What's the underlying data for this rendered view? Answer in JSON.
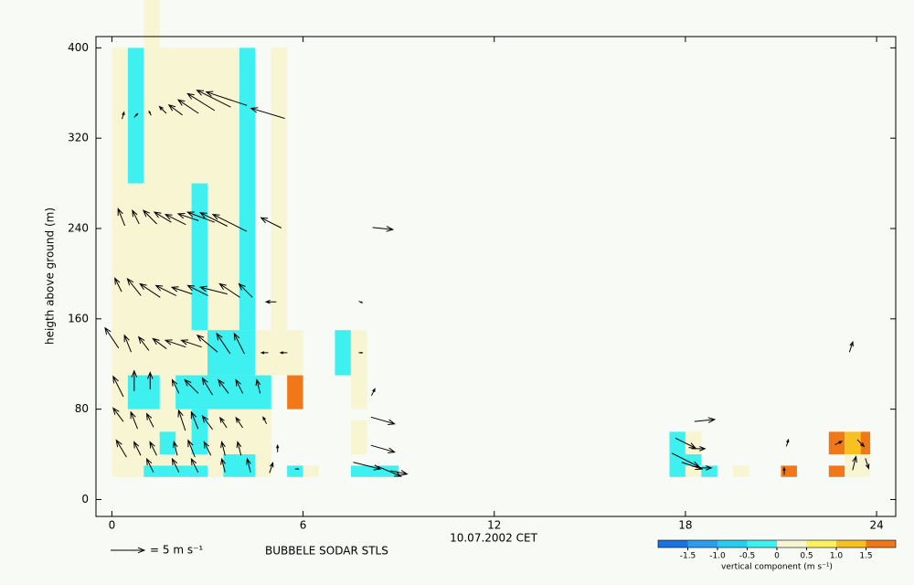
{
  "chart_data": {
    "type": "heatmap",
    "xlabel": "10.07.2002 CET",
    "ylabel": "heigth above ground (m)",
    "xlim": [
      -0.5,
      24.6
    ],
    "ylim": [
      -15,
      410
    ],
    "xticks": [
      0,
      6,
      12,
      18,
      24
    ],
    "yticks": [
      0,
      80,
      160,
      240,
      320,
      400
    ],
    "station": "BUBBELE SODAR STLS",
    "vector_key": {
      "value": 5,
      "label": "= 5 m s⁻¹"
    },
    "colorscale": {
      "label": "vertical component (m s⁻¹)",
      "bounds": [
        -2,
        -1.5,
        -1,
        -0.5,
        0,
        0.5,
        1,
        1.5,
        2
      ],
      "colors": [
        "#1a73e0",
        "#2a9df0",
        "#27ccf0",
        "#3ef0f0",
        "#f7f5d2",
        "#fff060",
        "#f8c020",
        "#f07818"
      ],
      "ticks": [
        -1.5,
        {
          "value": -1,
          "label": "-1.0"
        },
        -0.5,
        0,
        0.5,
        {
          "value": 1,
          "label": "1.0"
        },
        1.5
      ]
    },
    "cells": [
      [
        0,
        4.5,
        150,
        400,
        0.2
      ],
      [
        5.0,
        5.5,
        150,
        400,
        0.2
      ],
      [
        1.0,
        1.5,
        400,
        443,
        0.2
      ],
      [
        0.5,
        1.0,
        280,
        400,
        -0.3
      ],
      [
        2.5,
        3.0,
        150,
        280,
        -0.3
      ],
      [
        4.0,
        4.5,
        60,
        400,
        -0.3
      ],
      [
        0,
        6,
        110,
        150,
        0.2
      ],
      [
        0,
        5,
        20,
        110,
        0.2
      ],
      [
        3.0,
        4.5,
        110,
        150,
        -0.3
      ],
      [
        0.5,
        1.5,
        80,
        110,
        -0.3
      ],
      [
        2.0,
        5.0,
        80,
        110,
        -0.3
      ],
      [
        5.5,
        6.0,
        80,
        110,
        1.7
      ],
      [
        1.5,
        2.0,
        40,
        60,
        -0.3
      ],
      [
        2.5,
        3.0,
        40,
        80,
        -0.3
      ],
      [
        1.0,
        3.0,
        20,
        30,
        -0.3
      ],
      [
        3.5,
        4.5,
        20,
        40,
        -0.3
      ],
      [
        5.5,
        6.0,
        20,
        30,
        -0.3
      ],
      [
        6.0,
        6.5,
        20,
        30,
        0.2
      ],
      [
        7.0,
        7.5,
        110,
        150,
        -0.3
      ],
      [
        7.5,
        8.0,
        80,
        150,
        0.2
      ],
      [
        7.5,
        8.0,
        40,
        70,
        0.2
      ],
      [
        7.5,
        9.0,
        20,
        30,
        -0.3
      ],
      [
        17.5,
        18.0,
        20,
        60,
        -0.3
      ],
      [
        18.0,
        18.5,
        40,
        60,
        0.2
      ],
      [
        18.0,
        18.5,
        30,
        40,
        -0.3
      ],
      [
        18.0,
        18.5,
        20,
        30,
        0.2
      ],
      [
        18.5,
        19.0,
        20,
        30,
        -0.3
      ],
      [
        19.5,
        20.0,
        20,
        30,
        0.2
      ],
      [
        21.0,
        21.5,
        20,
        30,
        1.7
      ],
      [
        22.5,
        23.0,
        40,
        60,
        1.7
      ],
      [
        22.5,
        23.0,
        20,
        30,
        1.7
      ],
      [
        23.0,
        23.5,
        40,
        60,
        1.2
      ],
      [
        23.5,
        23.8,
        40,
        60,
        1.7
      ],
      [
        23.0,
        23.8,
        20,
        40,
        0.2
      ]
    ],
    "vectors": [
      [
        0.35,
        340,
        0.3,
        1
      ],
      [
        0.75,
        340,
        0.5,
        0.5
      ],
      [
        1.2,
        342,
        -0.3,
        0.6
      ],
      [
        1.6,
        345,
        -1,
        1
      ],
      [
        2.0,
        345,
        -2,
        1.5
      ],
      [
        2.4,
        348,
        -3,
        2
      ],
      [
        2.8,
        352,
        -4,
        2.5
      ],
      [
        3.2,
        355,
        -5,
        2.5
      ],
      [
        3.6,
        355,
        -6,
        2
      ],
      [
        4.9,
        342,
        -5,
        1.5
      ],
      [
        0.3,
        250,
        -1,
        2.5
      ],
      [
        0.75,
        250,
        -1,
        2
      ],
      [
        1.2,
        250,
        -2,
        2
      ],
      [
        1.6,
        250,
        -2.5,
        1.5
      ],
      [
        2.0,
        248,
        -3,
        1.5
      ],
      [
        2.4,
        250,
        -3,
        1
      ],
      [
        2.8,
        250,
        -4,
        1.5
      ],
      [
        3.2,
        248,
        -4,
        2
      ],
      [
        3.7,
        245,
        -5,
        2.5
      ],
      [
        5.0,
        245,
        -3,
        1.5
      ],
      [
        8.5,
        240,
        3,
        -0.3
      ],
      [
        0.2,
        190,
        -1,
        2
      ],
      [
        0.7,
        188,
        -2,
        2.5
      ],
      [
        1.2,
        185,
        -3,
        2
      ],
      [
        1.7,
        185,
        -3,
        1.5
      ],
      [
        2.2,
        185,
        -3,
        1
      ],
      [
        2.7,
        185,
        -3,
        1.5
      ],
      [
        3.2,
        185,
        -4,
        1
      ],
      [
        3.7,
        185,
        -3,
        2
      ],
      [
        4.2,
        185,
        -2,
        2
      ],
      [
        5.0,
        175,
        -1.5,
        0
      ],
      [
        7.8,
        175,
        0.5,
        -0.2
      ],
      [
        0.0,
        143,
        -2,
        3
      ],
      [
        0.5,
        138,
        -1,
        2.5
      ],
      [
        1.0,
        138,
        -1.5,
        2
      ],
      [
        1.5,
        138,
        -2,
        1.5
      ],
      [
        2.0,
        138,
        -3,
        1
      ],
      [
        2.5,
        138,
        -3,
        1
      ],
      [
        3.0,
        138,
        -3,
        2.5
      ],
      [
        3.5,
        138,
        -2,
        3
      ],
      [
        4.0,
        138,
        -1.5,
        3
      ],
      [
        4.8,
        130,
        -1,
        0
      ],
      [
        5.4,
        130,
        -1,
        0
      ],
      [
        7.8,
        130,
        0.5,
        0
      ],
      [
        23.2,
        135,
        0.5,
        1.5
      ],
      [
        0.2,
        100,
        -1.5,
        3
      ],
      [
        0.7,
        105,
        0,
        3
      ],
      [
        1.2,
        105,
        0,
        2.5
      ],
      [
        2.0,
        100,
        -1,
        2
      ],
      [
        2.5,
        100,
        -2,
        2
      ],
      [
        3.0,
        100,
        -1.5,
        2.5
      ],
      [
        3.5,
        100,
        -1.5,
        2
      ],
      [
        4.0,
        100,
        -1,
        2
      ],
      [
        4.6,
        100,
        -0.5,
        2
      ],
      [
        8.2,
        95,
        0.5,
        1
      ],
      [
        0.2,
        75,
        -1.5,
        2
      ],
      [
        0.7,
        70,
        -1,
        2.5
      ],
      [
        1.2,
        70,
        -1,
        2
      ],
      [
        2.2,
        70,
        -1,
        3
      ],
      [
        2.6,
        70,
        -1,
        2.5
      ],
      [
        3.0,
        68,
        -1.5,
        2
      ],
      [
        3.5,
        68,
        -1,
        1.5
      ],
      [
        4.0,
        68,
        -1,
        1.5
      ],
      [
        4.8,
        70,
        -0.5,
        1
      ],
      [
        8.5,
        70,
        3.5,
        -1
      ],
      [
        18.6,
        70,
        3,
        0.3
      ],
      [
        0.3,
        45,
        -1.5,
        2.5
      ],
      [
        0.8,
        45,
        -1,
        2
      ],
      [
        1.3,
        45,
        -1,
        2
      ],
      [
        2.0,
        45,
        -0.5,
        2
      ],
      [
        2.5,
        45,
        -1,
        2.5
      ],
      [
        3.0,
        45,
        -1,
        2
      ],
      [
        3.5,
        45,
        -0.5,
        2
      ],
      [
        4.0,
        45,
        -0.5,
        2
      ],
      [
        5.2,
        45,
        0,
        1
      ],
      [
        8.5,
        45,
        3.5,
        -1
      ],
      [
        18.0,
        50,
        3,
        -1.5
      ],
      [
        18.4,
        45,
        2,
        0
      ],
      [
        21.2,
        50,
        0.3,
        1
      ],
      [
        22.8,
        50,
        1,
        0.5
      ],
      [
        23.5,
        50,
        1,
        -1
      ],
      [
        1.2,
        30,
        -1,
        2
      ],
      [
        2.0,
        30,
        -1,
        2
      ],
      [
        2.6,
        30,
        -1,
        2
      ],
      [
        3.5,
        30,
        -0.5,
        2
      ],
      [
        4.3,
        30,
        -0.5,
        2
      ],
      [
        5.0,
        28,
        0.5,
        1.5
      ],
      [
        5.8,
        27,
        0.5,
        0
      ],
      [
        8.0,
        30,
        4,
        -1
      ],
      [
        8.7,
        25,
        3.5,
        -1.5
      ],
      [
        9.0,
        24,
        2.5,
        -0.5
      ],
      [
        18.0,
        35,
        4,
        -2
      ],
      [
        18.2,
        30,
        3,
        -1
      ],
      [
        18.6,
        28,
        2,
        0
      ],
      [
        21.1,
        25,
        0,
        1
      ],
      [
        23.3,
        32,
        0.5,
        2
      ],
      [
        23.7,
        32,
        0.5,
        -1.5
      ]
    ]
  }
}
